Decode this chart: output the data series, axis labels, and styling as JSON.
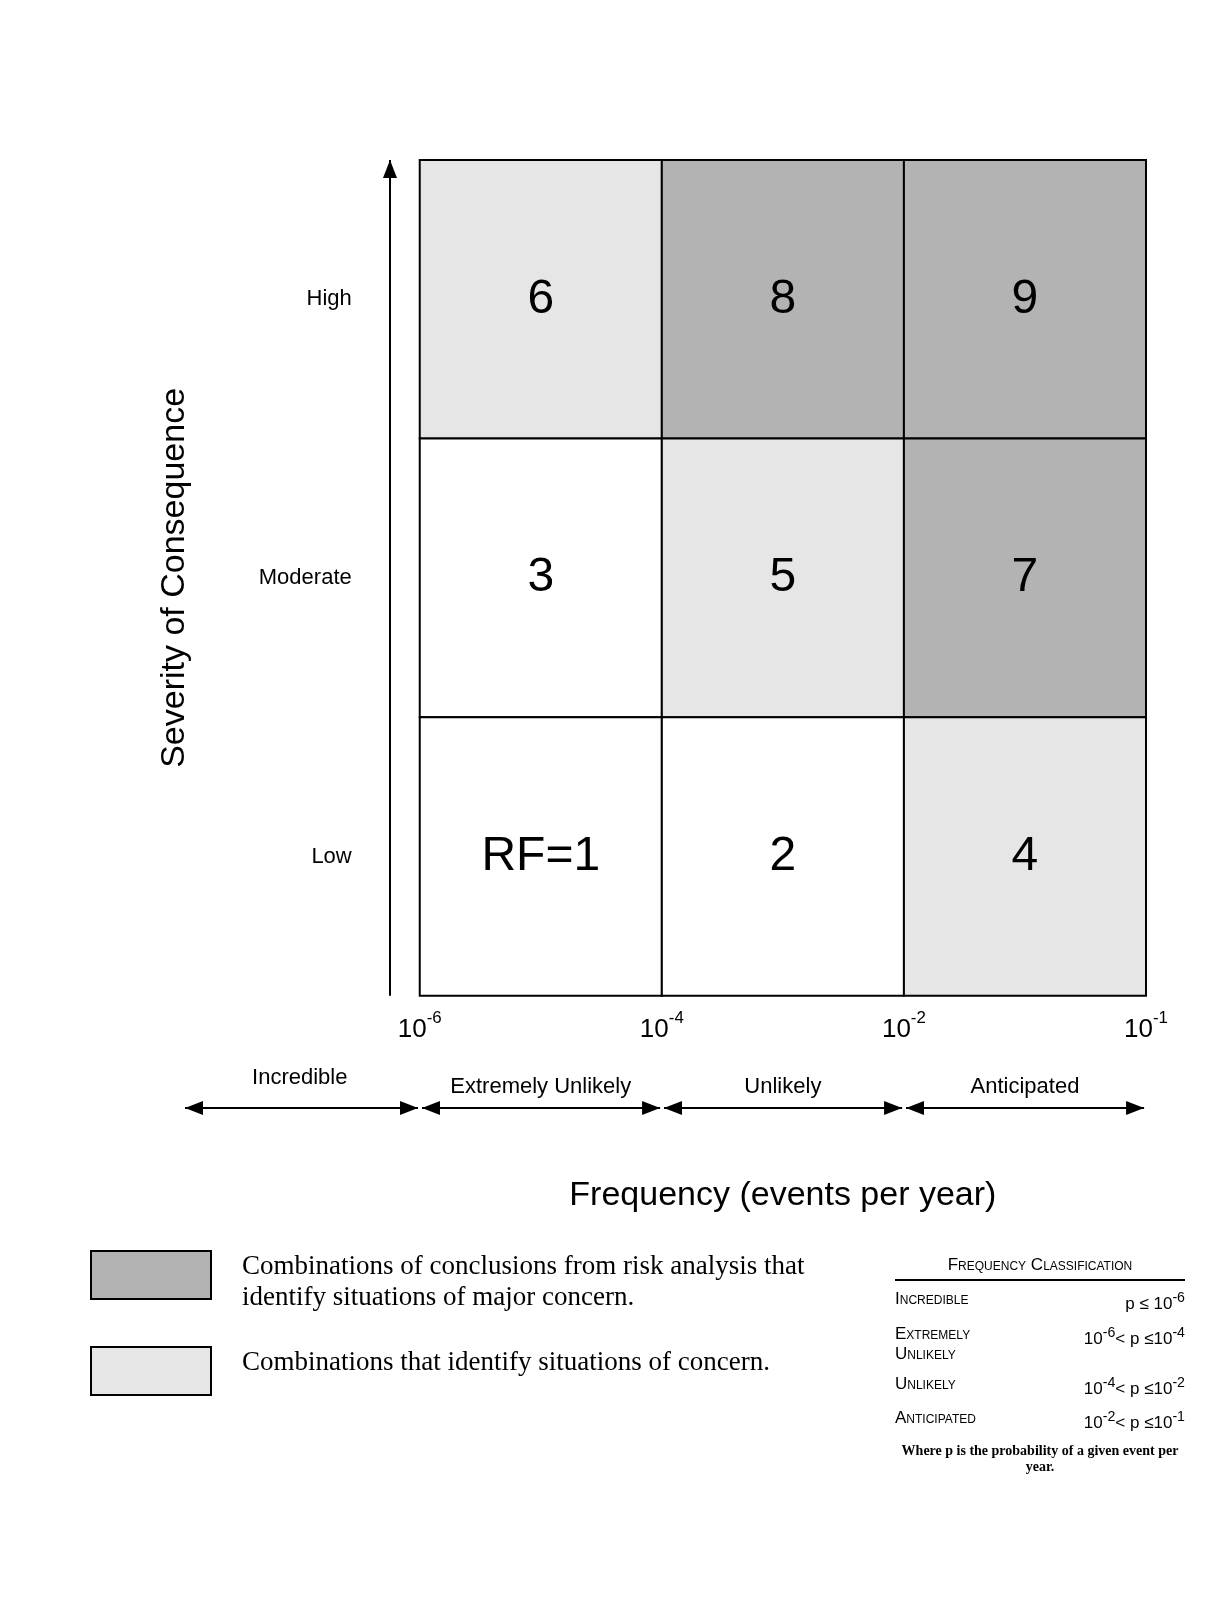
{
  "chart_data": {
    "type": "heatmap",
    "xlabel": "Frequency (events per year)",
    "ylabel": "Severity of Consequence",
    "categories": [
      "Extremely Unlikely",
      "Unlikely",
      "Anticipated"
    ],
    "y_categories": [
      "High",
      "Moderate",
      "Low"
    ],
    "cells": [
      [
        6,
        8,
        9
      ],
      [
        3,
        5,
        7
      ],
      [
        1,
        2,
        4
      ]
    ],
    "data_labels": true,
    "colors": [
      [
        "#e6e6e6",
        "#b3b3b3",
        "#b3b3b3"
      ],
      [
        "#ffffff",
        "#e6e6e6",
        "#b3b3b3"
      ],
      [
        "#ffffff",
        "#ffffff",
        "#e6e6e6"
      ]
    ],
    "annotations": [
      "10$^{-6}$",
      "10$^{-4}$",
      "10$^{-2}$",
      "10$^{-1}$",
      "Incredible",
      "Combinations of conclusions from risk analysis that identify situations of major concern.",
      "Combinations that identify situations of concern.",
      "Frequency Classification",
      "Incredible",
      "p ≤ 10$^{-6}$",
      "Extremely Unlikely",
      "10$^{-6}$< p ≤10$^{-4}$",
      "Unlikely",
      "10$^{-4}$< p ≤10$^{-2}$",
      "Anticipated",
      "10$^{-2}$< p ≤10$^{-1}$",
      "Where p is the probability of a given event per year.",
      "RF="
    ]
  }
}
